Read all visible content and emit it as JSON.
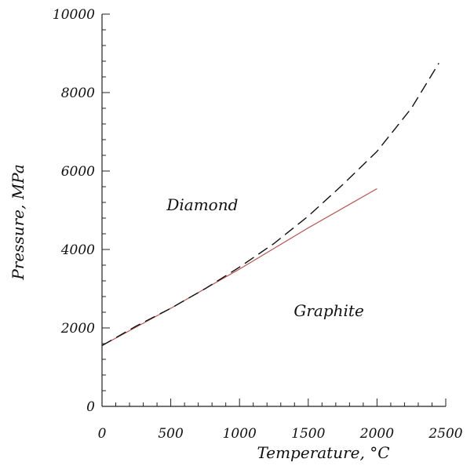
{
  "chart_data": {
    "type": "line",
    "xlabel": "Temperature, °C",
    "ylabel": "Pressure, MPa",
    "xlim": [
      0,
      2500
    ],
    "ylim": [
      0,
      10000
    ],
    "x_ticks": [
      0,
      500,
      1000,
      1500,
      2000,
      2500
    ],
    "y_ticks": [
      0,
      2000,
      4000,
      6000,
      8000,
      10000
    ],
    "x_tick_labels": [
      "0",
      "500",
      "1000",
      "1500",
      "2000",
      "2500"
    ],
    "y_tick_labels": [
      "0",
      "2000",
      "4000",
      "6000",
      "8000",
      "10000"
    ],
    "grid": false,
    "series": [
      {
        "style": "solid",
        "color": "#c0504d",
        "x": [
          0,
          500,
          1000,
          1500,
          2000
        ],
        "y": [
          1550,
          2500,
          3500,
          4550,
          5550
        ]
      },
      {
        "style": "dashed",
        "color": "#111111",
        "x": [
          0,
          250,
          500,
          750,
          1000,
          1250,
          1500,
          1750,
          2000,
          2250,
          2450
        ],
        "y": [
          1550,
          2050,
          2500,
          3000,
          3550,
          4150,
          4850,
          5650,
          6500,
          7600,
          8750
        ]
      }
    ],
    "annotations": [
      {
        "text": "Diamond",
        "x": 730,
        "y": 5000
      },
      {
        "text": "Graphite",
        "x": 1650,
        "y": 2300
      }
    ]
  }
}
